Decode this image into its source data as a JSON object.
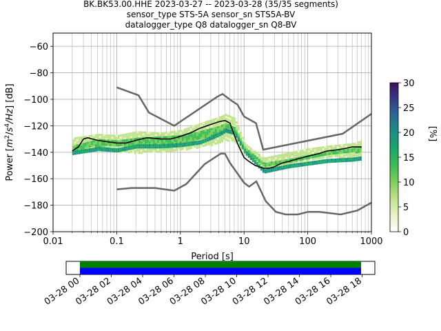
{
  "title_lines": [
    "BK.BK53.00.HHE   2023-03-27 -- 2023-03-28  (35/35 segments)",
    "sensor_type STS-5A sensor_sn STS5A-BV",
    "datalogger_type Q8 datalogger_sn Q8-BV"
  ],
  "colors": {
    "mode_line": "#000000",
    "noise_models": "#666666",
    "grid": "#b0b0b0",
    "coverage_green": "#008000",
    "coverage_blue": "#0000ff"
  },
  "chart_data": {
    "type": "heatmap",
    "subtype": "probabilistic power spectral density",
    "xlabel": "Period [s]",
    "ylabel_parts": [
      "Power [",
      "m",
      "2",
      "/",
      "s",
      "4",
      "/Hz",
      "] [dB]"
    ],
    "x_scale": "log",
    "xlim": [
      0.01,
      1000
    ],
    "ylim": [
      -200,
      -50
    ],
    "x_ticks": [
      {
        "value": 0.01,
        "label": "0.01"
      },
      {
        "value": 0.1,
        "label": "0.1"
      },
      {
        "value": 1,
        "label": "1"
      },
      {
        "value": 10,
        "label": "10"
      },
      {
        "value": 100,
        "label": "100"
      },
      {
        "value": 1000,
        "label": "1000"
      }
    ],
    "y_ticks": [
      -60,
      -80,
      -100,
      -120,
      -140,
      -160,
      -180,
      -200
    ],
    "grid": true,
    "colorbar": {
      "label": "[%]",
      "range": [
        0,
        30
      ],
      "ticks": [
        0,
        5,
        10,
        15,
        20,
        25,
        30
      ],
      "colormap": [
        "#ffffff",
        "#e9f2c4",
        "#bfe38d",
        "#7fcf5e",
        "#3dbd55",
        "#1aa86a",
        "#1b8f85",
        "#2a6b94",
        "#353b8c",
        "#3d0e5c"
      ]
    },
    "mode": {
      "x": [
        0.02,
        0.025,
        0.03,
        0.035,
        0.05,
        0.07,
        0.1,
        0.14,
        0.2,
        0.3,
        0.5,
        0.7,
        1,
        1.5,
        2,
        3,
        4,
        5,
        6,
        7,
        8,
        10,
        12,
        15,
        20,
        25,
        30,
        40,
        50,
        70,
        100,
        150,
        200,
        300,
        400,
        500,
        700
      ],
      "y": [
        -139,
        -136,
        -130,
        -129,
        -131,
        -132,
        -133,
        -133,
        -131,
        -129,
        -130,
        -130,
        -128,
        -125,
        -122,
        -119,
        -117,
        -116,
        -118,
        -127,
        -134,
        -144,
        -147,
        -150,
        -152,
        -152,
        -151,
        -148,
        -147,
        -145,
        -143,
        -141,
        -139,
        -138,
        -137,
        -136,
        -136
      ]
    },
    "nhnm": {
      "x": [
        0.1,
        0.22,
        0.32,
        0.8,
        3.8,
        4.6,
        6.3,
        7.9,
        10,
        15.4,
        20,
        354.8,
        1000
      ],
      "y": [
        -91,
        -97,
        -110,
        -120,
        -98,
        -96,
        -101,
        -104,
        -113,
        -118,
        -138,
        -126,
        -111
      ]
    },
    "nlnm": {
      "x": [
        0.1,
        0.17,
        0.4,
        0.8,
        1.24,
        2.4,
        4.3,
        5,
        6,
        10,
        12,
        15.6,
        21.9,
        31.6,
        45,
        70,
        101,
        154,
        328,
        600,
        1000
      ],
      "y": [
        -168,
        -167,
        -167,
        -169,
        -164,
        -149,
        -141,
        -141,
        -148,
        -163,
        -166,
        -162,
        -177,
        -185,
        -187,
        -187,
        -185,
        -185,
        -187,
        -184,
        -178
      ]
    },
    "density_bands": [
      {
        "x": [
          0.02,
          0.05,
          0.1,
          0.2,
          0.5,
          1,
          2,
          4,
          5,
          7,
          10,
          20,
          50,
          100,
          200,
          500,
          700
        ],
        "lo": [
          -141,
          -138,
          -139,
          -140,
          -139,
          -138,
          -136,
          -133,
          -131,
          -131,
          -142,
          -152,
          -149,
          -146,
          -144,
          -143,
          -143
        ],
        "hi": [
          -129,
          -126,
          -127,
          -124,
          -125,
          -123,
          -118,
          -113,
          -111,
          -114,
          -133,
          -144,
          -140,
          -137,
          -135,
          -133,
          -131
        ],
        "level": 6
      },
      {
        "x": [
          0.02,
          0.05,
          0.1,
          0.2,
          0.5,
          1,
          2,
          4,
          5,
          7,
          10,
          20,
          50,
          100,
          200,
          500,
          700
        ],
        "lo": [
          -138,
          -135,
          -135,
          -135,
          -134,
          -134,
          -130,
          -126,
          -124,
          -125,
          -139,
          -151,
          -147,
          -144,
          -142,
          -140,
          -139
        ],
        "hi": [
          -135,
          -130,
          -131,
          -129,
          -128,
          -127,
          -124,
          -120,
          -118,
          -121,
          -136,
          -148,
          -145,
          -142,
          -139,
          -137,
          -135
        ],
        "level": 12
      },
      {
        "x": [
          0.02,
          0.05,
          0.1,
          0.2,
          0.5,
          1,
          2,
          4,
          5,
          7,
          10,
          20,
          50,
          100,
          200,
          500,
          700
        ],
        "lo": [
          -142,
          -139,
          -140,
          -137,
          -137,
          -136,
          -134,
          -128,
          -125,
          -127,
          -141,
          -156,
          -152,
          -150,
          -148,
          -147,
          -146
        ],
        "hi": [
          -139,
          -136,
          -137,
          -134,
          -134,
          -133,
          -131,
          -125,
          -122,
          -124,
          -138,
          -153,
          -149,
          -147,
          -145,
          -144,
          -143
        ],
        "level": 18
      }
    ],
    "time_axis": {
      "coverage_tracks": [
        {
          "color": "#008000",
          "start_fraction": 0.0,
          "end_fraction": 1.0
        },
        {
          "color": "#0000ff",
          "start_fraction": 0.0,
          "end_fraction": 1.0
        }
      ],
      "tick_labels": [
        "03-28 00",
        "03-28 02",
        "03-28 04",
        "03-28 06",
        "03-28 08",
        "03-28 10",
        "03-28 12",
        "03-28 14",
        "03-28 16",
        "03-28 18"
      ]
    }
  }
}
